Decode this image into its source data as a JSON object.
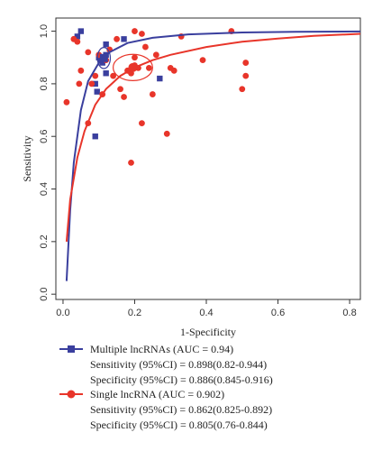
{
  "chart_data": {
    "type": "scatter",
    "xlabel": "1-Specificity",
    "ylabel": "Sensitivity",
    "xlim": [
      -0.02,
      0.83
    ],
    "ylim": [
      -0.02,
      1.05
    ],
    "x_ticks": [
      "0.0",
      "0.2",
      "0.4",
      "0.6",
      "0.8"
    ],
    "y_ticks": [
      "0.0",
      "0.2",
      "0.4",
      "0.6",
      "0.8",
      "1.0"
    ],
    "x_tick_values": [
      0.0,
      0.2,
      0.4,
      0.6,
      0.8
    ],
    "y_tick_values": [
      0.0,
      0.2,
      0.4,
      0.6,
      0.8,
      1.0
    ],
    "series": [
      {
        "color": "#3a3f9e",
        "marker": "square",
        "points": [
          [
            0.04,
            0.98
          ],
          [
            0.05,
            1.0
          ],
          [
            0.09,
            0.8
          ],
          [
            0.095,
            0.77
          ],
          [
            0.09,
            0.6
          ],
          [
            0.1,
            0.9
          ],
          [
            0.11,
            0.88
          ],
          [
            0.115,
            0.9
          ],
          [
            0.12,
            0.91
          ],
          [
            0.12,
            0.95
          ],
          [
            0.12,
            0.84
          ],
          [
            0.17,
            0.97
          ],
          [
            0.27,
            0.82
          ],
          [
            0.105,
            0.89
          ]
        ],
        "curve": [
          [
            0.01,
            0.05
          ],
          [
            0.02,
            0.32
          ],
          [
            0.03,
            0.5
          ],
          [
            0.05,
            0.7
          ],
          [
            0.07,
            0.81
          ],
          [
            0.1,
            0.88
          ],
          [
            0.13,
            0.92
          ],
          [
            0.18,
            0.955
          ],
          [
            0.25,
            0.975
          ],
          [
            0.35,
            0.988
          ],
          [
            0.5,
            0.995
          ],
          [
            0.65,
            0.998
          ],
          [
            0.83,
            0.999
          ]
        ],
        "summary_point": [
          0.114,
          0.898
        ],
        "confidence_ellipse": {
          "center": [
            0.114,
            0.898
          ],
          "rx": 0.018,
          "ry": 0.04
        }
      },
      {
        "color": "#e8352a",
        "marker": "circle",
        "points": [
          [
            0.01,
            0.73
          ],
          [
            0.03,
            0.97
          ],
          [
            0.04,
            0.96
          ],
          [
            0.045,
            0.8
          ],
          [
            0.05,
            0.85
          ],
          [
            0.07,
            0.92
          ],
          [
            0.07,
            0.65
          ],
          [
            0.08,
            0.8
          ],
          [
            0.09,
            0.83
          ],
          [
            0.1,
            0.91
          ],
          [
            0.11,
            0.76
          ],
          [
            0.12,
            0.89
          ],
          [
            0.13,
            0.93
          ],
          [
            0.15,
            0.97
          ],
          [
            0.16,
            0.78
          ],
          [
            0.17,
            0.75
          ],
          [
            0.18,
            0.85
          ],
          [
            0.19,
            0.84
          ],
          [
            0.2,
            0.86
          ],
          [
            0.2,
            0.87
          ],
          [
            0.19,
            0.5
          ],
          [
            0.2,
            0.9
          ],
          [
            0.21,
            0.86
          ],
          [
            0.22,
            0.65
          ],
          [
            0.22,
            0.99
          ],
          [
            0.23,
            0.94
          ],
          [
            0.24,
            0.86
          ],
          [
            0.25,
            0.76
          ],
          [
            0.26,
            0.91
          ],
          [
            0.29,
            0.61
          ],
          [
            0.3,
            0.86
          ],
          [
            0.31,
            0.85
          ],
          [
            0.33,
            0.98
          ],
          [
            0.39,
            0.89
          ],
          [
            0.47,
            1.0
          ],
          [
            0.5,
            0.78
          ],
          [
            0.51,
            0.88
          ],
          [
            0.51,
            0.83
          ],
          [
            0.2,
            1.0
          ],
          [
            0.14,
            0.83
          ]
        ],
        "curve": [
          [
            0.01,
            0.2
          ],
          [
            0.02,
            0.36
          ],
          [
            0.04,
            0.52
          ],
          [
            0.06,
            0.62
          ],
          [
            0.09,
            0.72
          ],
          [
            0.12,
            0.78
          ],
          [
            0.16,
            0.83
          ],
          [
            0.2,
            0.862
          ],
          [
            0.25,
            0.89
          ],
          [
            0.3,
            0.91
          ],
          [
            0.4,
            0.94
          ],
          [
            0.5,
            0.96
          ],
          [
            0.6,
            0.972
          ],
          [
            0.7,
            0.982
          ],
          [
            0.83,
            0.99
          ]
        ],
        "summary_point": [
          0.195,
          0.862
        ],
        "confidence_ellipse": {
          "center": [
            0.195,
            0.862
          ],
          "rx": 0.055,
          "ry": 0.05
        }
      }
    ]
  },
  "legend": [
    {
      "title": "Multiple lncRNAs (AUC = 0.94)",
      "sensitivity": "Sensitivity (95%CI) = 0.898(0.82-0.944)",
      "specificity": "Specificity (95%CI) = 0.886(0.845-0.916)"
    },
    {
      "title": "Single lncRNA (AUC = 0.902)",
      "sensitivity": "Sensitivity (95%CI) = 0.862(0.825-0.892)",
      "specificity": "Specificity (95%CI) = 0.805(0.76-0.844)"
    }
  ]
}
